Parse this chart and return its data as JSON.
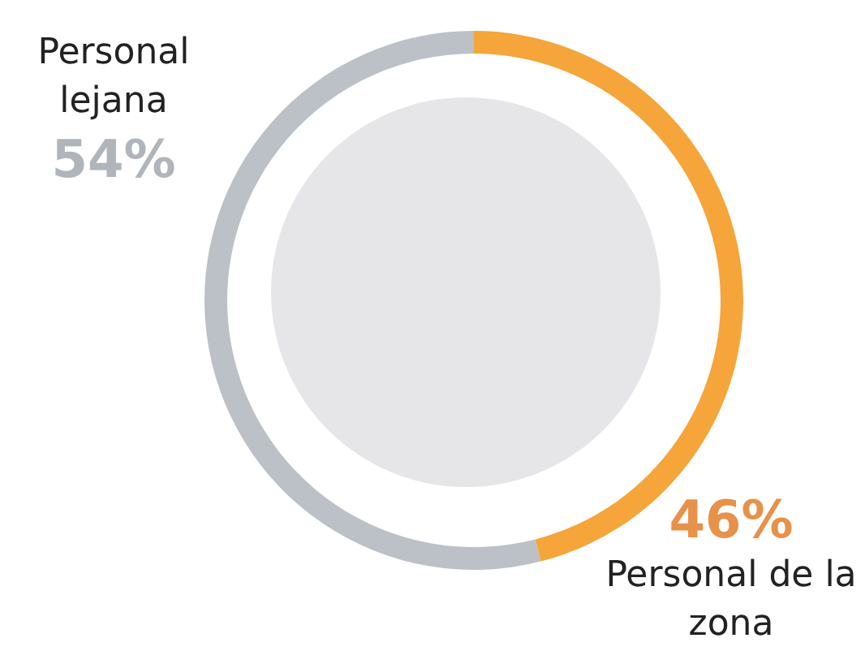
{
  "chart_data": {
    "type": "donut",
    "categories": [
      "Personal lejana",
      "Personal de la zona"
    ],
    "values": [
      54,
      46
    ],
    "colors": [
      "#bcc1c7",
      "#f5a53a"
    ],
    "value_labels": [
      "54%",
      "46%"
    ]
  }
}
